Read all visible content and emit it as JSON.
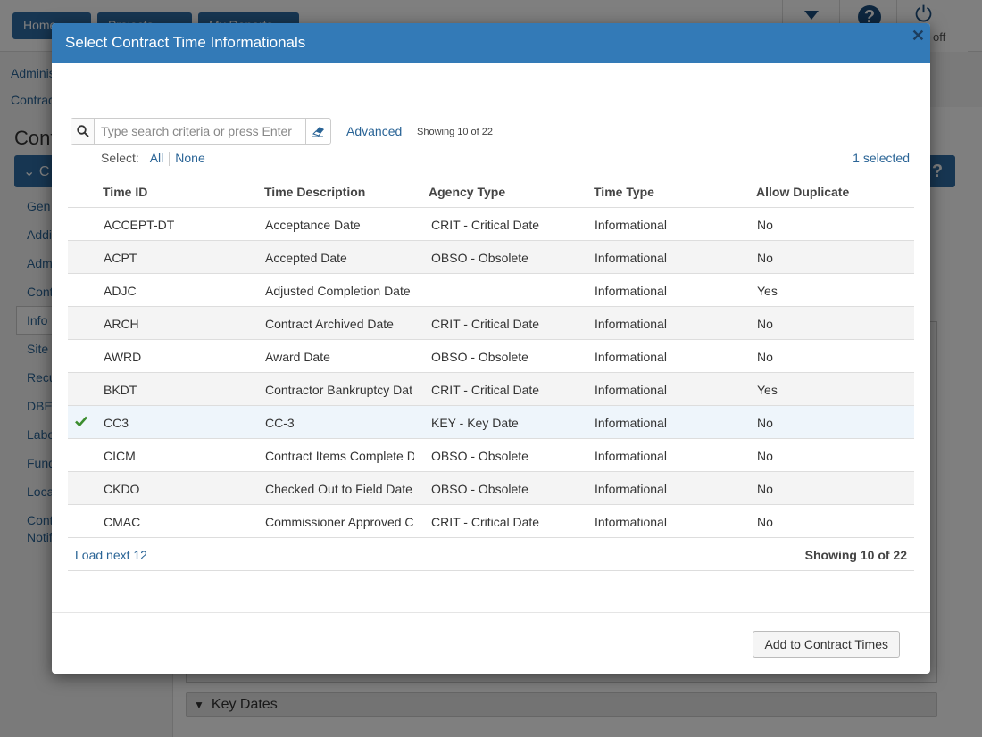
{
  "background": {
    "nav_buttons": [
      "Home",
      "Projects",
      "My Reports"
    ],
    "signoff_label": "off",
    "breadcrumbs": [
      "Administration",
      "Contracts"
    ],
    "page_title": "Contract",
    "sidenav_head": "C",
    "sidenav_items": [
      "Gen",
      "Addi",
      "Adm",
      "Cont",
      "Info",
      "Site",
      "Recu",
      "DBE",
      "Labo",
      "Fund",
      "Loca",
      "Cont",
      "Notif"
    ],
    "key_dates_label": "Key Dates"
  },
  "modal": {
    "title": "Select Contract Time Informationals",
    "search": {
      "placeholder": "Type search criteria or press Enter",
      "value": ""
    },
    "advanced_label": "Advanced",
    "showing_top": "Showing 10 of 22",
    "select_label": "Select:",
    "select_all": "All",
    "select_none": "None",
    "selected_count": "1 selected",
    "columns": [
      "Time ID",
      "Time Description",
      "Agency Type",
      "Time Type",
      "Allow Duplicate"
    ],
    "rows": [
      {
        "id": "ACCEPT-DT",
        "desc": "Acceptance Date",
        "agency": "CRIT - Critical Date",
        "type": "Informational",
        "dup": "No",
        "selected": false
      },
      {
        "id": "ACPT",
        "desc": "Accepted Date",
        "agency": "OBSO - Obsolete",
        "type": "Informational",
        "dup": "No",
        "selected": false
      },
      {
        "id": "ADJC",
        "desc": "Adjusted Completion Date",
        "agency": "",
        "type": "Informational",
        "dup": "Yes",
        "selected": false
      },
      {
        "id": "ARCH",
        "desc": "Contract Archived Date",
        "agency": "CRIT - Critical Date",
        "type": "Informational",
        "dup": "No",
        "selected": false
      },
      {
        "id": "AWRD",
        "desc": "Award Date",
        "agency": "OBSO - Obsolete",
        "type": "Informational",
        "dup": "No",
        "selected": false
      },
      {
        "id": "BKDT",
        "desc": "Contractor Bankruptcy Dat",
        "agency": "CRIT - Critical Date",
        "type": "Informational",
        "dup": "Yes",
        "selected": false
      },
      {
        "id": "CC3",
        "desc": "CC-3",
        "agency": "KEY - Key Date",
        "type": "Informational",
        "dup": "No",
        "selected": true
      },
      {
        "id": "CICM",
        "desc": "Contract Items Complete D",
        "agency": "OBSO - Obsolete",
        "type": "Informational",
        "dup": "No",
        "selected": false
      },
      {
        "id": "CKDO",
        "desc": "Checked Out to Field Date",
        "agency": "OBSO - Obsolete",
        "type": "Informational",
        "dup": "No",
        "selected": false
      },
      {
        "id": "CMAC",
        "desc": "Commissioner Approved C",
        "agency": "CRIT - Critical Date",
        "type": "Informational",
        "dup": "No",
        "selected": false
      }
    ],
    "load_next": "Load next 12",
    "showing_bottom": "Showing 10 of 22",
    "add_button": "Add to Contract Times"
  },
  "colors": {
    "header_blue": "#337ab7",
    "link_blue": "#2a6496",
    "check_green": "#3c8d2f"
  }
}
